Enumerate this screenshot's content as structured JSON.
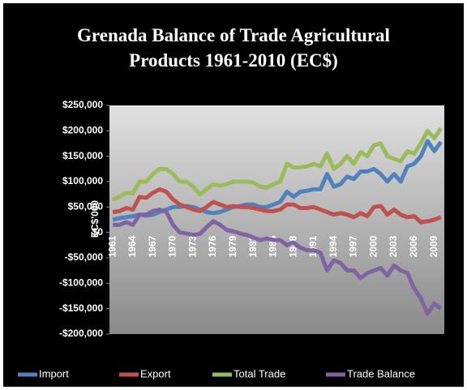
{
  "chart_data": {
    "type": "line",
    "title": "Grenada Balance of Trade Agricultural Products 1961-2010 (EC$)",
    "ylabel": "EC$'000",
    "categories": [
      "1961",
      null,
      null,
      "1964",
      null,
      null,
      "1967",
      null,
      null,
      "1970",
      null,
      null,
      "1973",
      null,
      null,
      "1976",
      null,
      null,
      "1979",
      null,
      null,
      "1982",
      null,
      null,
      "1985",
      null,
      null,
      "1988",
      null,
      null,
      "1991",
      null,
      null,
      "1994",
      null,
      null,
      "1997",
      null,
      null,
      "2000",
      null,
      null,
      "2003",
      null,
      null,
      "2006",
      null,
      null,
      "2009",
      null
    ],
    "series": [
      {
        "name": "Import",
        "color": "#4f81bd",
        "values": [
          25,
          28,
          30,
          32,
          35,
          33,
          35,
          40,
          45,
          50,
          50,
          52,
          50,
          45,
          40,
          38,
          40,
          45,
          50,
          52,
          55,
          55,
          50,
          50,
          55,
          60,
          80,
          70,
          80,
          82,
          85,
          85,
          115,
          90,
          95,
          110,
          105,
          120,
          120,
          125,
          115,
          100,
          115,
          100,
          130,
          135,
          150,
          180,
          160,
          178
        ]
      },
      {
        "name": "Export",
        "color": "#c0504d",
        "values": [
          40,
          42,
          48,
          45,
          70,
          68,
          78,
          85,
          80,
          65,
          55,
          50,
          45,
          42,
          50,
          60,
          55,
          50,
          52,
          50,
          50,
          48,
          45,
          42,
          42,
          45,
          55,
          55,
          48,
          48,
          50,
          45,
          40,
          35,
          38,
          35,
          30,
          38,
          32,
          50,
          52,
          35,
          45,
          35,
          30,
          32,
          20,
          22,
          25,
          30
        ]
      },
      {
        "name": "Total Trade",
        "color": "#9bbb59",
        "values": [
          65,
          70,
          78,
          77,
          100,
          100,
          115,
          125,
          125,
          115,
          100,
          100,
          90,
          75,
          85,
          95,
          92,
          95,
          100,
          100,
          100,
          98,
          90,
          88,
          95,
          100,
          135,
          128,
          128,
          130,
          135,
          130,
          155,
          125,
          135,
          150,
          135,
          158,
          150,
          172,
          175,
          150,
          145,
          140,
          160,
          155,
          175,
          200,
          185,
          205
        ]
      },
      {
        "name": "Trade Balance",
        "color": "#8064a2",
        "values": [
          15,
          15,
          20,
          15,
          35,
          35,
          42,
          45,
          40,
          15,
          0,
          -2,
          -5,
          -3,
          10,
          22,
          15,
          5,
          2,
          -2,
          -5,
          -10,
          -15,
          -12,
          -15,
          -15,
          -25,
          -20,
          -30,
          -35,
          -35,
          -40,
          -75,
          -55,
          -60,
          -75,
          -75,
          -90,
          -80,
          -75,
          -70,
          -85,
          -65,
          -75,
          -80,
          -110,
          -130,
          -160,
          -140,
          -150
        ]
      }
    ],
    "ylim": [
      -200000,
      250000
    ],
    "yticks": [
      {
        "value": -200000,
        "label": "-$200,000"
      },
      {
        "value": -150000,
        "label": "-$150,000"
      },
      {
        "value": -100000,
        "label": "-$100,000"
      },
      {
        "value": -50000,
        "label": "-$50,000"
      },
      {
        "value": 0,
        "label": "$0"
      },
      {
        "value": 50000,
        "label": "$50,000"
      },
      {
        "value": 100000,
        "label": "$100,000"
      },
      {
        "value": 150000,
        "label": "$150,000"
      },
      {
        "value": 200000,
        "label": "$200,000"
      },
      {
        "value": 250000,
        "label": "$250,000"
      }
    ],
    "value_scale": 1000,
    "grid": false,
    "legend": "bottom"
  }
}
